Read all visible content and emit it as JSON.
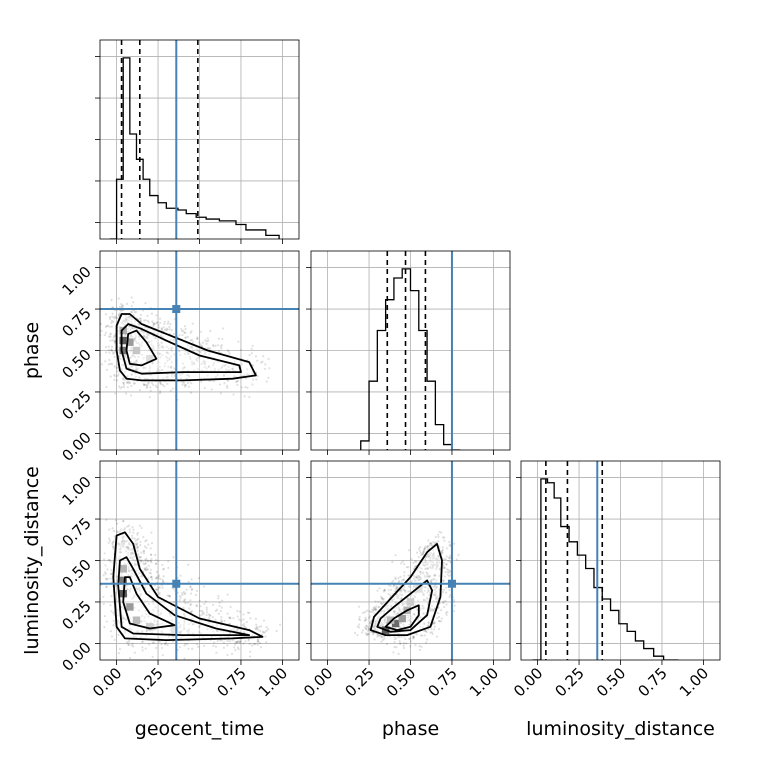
{
  "chart_data": {
    "type": "corner",
    "parameters": [
      "geocent_time",
      "phase",
      "luminosity_distance"
    ],
    "truths": [
      0.36,
      0.75,
      0.36
    ],
    "truth_color": "#4682b4",
    "axis_range": [
      -0.1,
      1.1
    ],
    "tick_values": [
      0.0,
      0.25,
      0.5,
      0.75,
      1.0
    ],
    "tick_labels": [
      "0.00",
      "0.25",
      "0.50",
      "0.75",
      "1.00"
    ],
    "grid": true,
    "quantiles": {
      "geocent_time": [
        0.03,
        0.14,
        0.49
      ],
      "phase": [
        0.36,
        0.47,
        0.59
      ],
      "luminosity_distance": [
        0.05,
        0.18,
        0.39
      ]
    },
    "histograms": {
      "geocent_time": {
        "edges": [
          -0.04,
          0.0,
          0.04,
          0.08,
          0.12,
          0.16,
          0.2,
          0.25,
          0.3,
          0.37,
          0.42,
          0.48,
          0.54,
          0.62,
          0.72,
          0.78,
          0.9,
          0.98
        ],
        "counts": [
          0.0,
          0.33,
          1.0,
          0.58,
          0.44,
          0.33,
          0.24,
          0.2,
          0.17,
          0.16,
          0.14,
          0.12,
          0.11,
          0.1,
          0.08,
          0.05,
          0.02
        ]
      },
      "phase": {
        "edges": [
          0.2,
          0.25,
          0.3,
          0.35,
          0.4,
          0.45,
          0.5,
          0.55,
          0.6,
          0.65,
          0.7,
          0.75,
          0.8
        ],
        "counts": [
          0.05,
          0.38,
          0.66,
          0.83,
          0.95,
          1.0,
          0.88,
          0.66,
          0.38,
          0.14,
          0.03,
          0.0
        ]
      },
      "luminosity_distance": {
        "edges": [
          -0.03,
          0.02,
          0.06,
          0.1,
          0.14,
          0.19,
          0.24,
          0.29,
          0.34,
          0.39,
          0.44,
          0.49,
          0.54,
          0.59,
          0.64,
          0.7,
          0.76,
          0.85
        ],
        "counts": [
          0.0,
          0.95,
          0.93,
          0.85,
          0.7,
          0.62,
          0.55,
          0.48,
          0.38,
          0.32,
          0.26,
          0.19,
          0.15,
          0.1,
          0.06,
          0.02,
          0.0
        ]
      }
    },
    "contours": {
      "geocent_time__phase": [
        [
          [
            0.0,
            0.5
          ],
          [
            0.02,
            0.38
          ],
          [
            0.06,
            0.33
          ],
          [
            0.15,
            0.32
          ],
          [
            0.4,
            0.32
          ],
          [
            0.7,
            0.33
          ],
          [
            0.84,
            0.35
          ],
          [
            0.8,
            0.43
          ],
          [
            0.55,
            0.5
          ],
          [
            0.3,
            0.6
          ],
          [
            0.15,
            0.66
          ],
          [
            0.08,
            0.72
          ],
          [
            0.03,
            0.72
          ],
          [
            0.0,
            0.65
          ]
        ],
        [
          [
            0.03,
            0.5
          ],
          [
            0.06,
            0.39
          ],
          [
            0.15,
            0.36
          ],
          [
            0.4,
            0.37
          ],
          [
            0.75,
            0.37
          ],
          [
            0.74,
            0.41
          ],
          [
            0.5,
            0.47
          ],
          [
            0.3,
            0.56
          ],
          [
            0.15,
            0.63
          ],
          [
            0.07,
            0.66
          ],
          [
            0.03,
            0.62
          ]
        ],
        [
          [
            0.06,
            0.5
          ],
          [
            0.08,
            0.42
          ],
          [
            0.15,
            0.41
          ],
          [
            0.24,
            0.45
          ],
          [
            0.18,
            0.55
          ],
          [
            0.12,
            0.62
          ],
          [
            0.07,
            0.6
          ]
        ]
      ],
      "geocent_time__luminosity_distance": [
        [
          [
            -0.02,
            0.4
          ],
          [
            0.0,
            0.1
          ],
          [
            0.05,
            0.03
          ],
          [
            0.3,
            0.02
          ],
          [
            0.7,
            0.03
          ],
          [
            0.88,
            0.04
          ],
          [
            0.8,
            0.08
          ],
          [
            0.5,
            0.15
          ],
          [
            0.25,
            0.28
          ],
          [
            0.14,
            0.45
          ],
          [
            0.1,
            0.6
          ],
          [
            0.05,
            0.67
          ],
          [
            0.0,
            0.65
          ]
        ],
        [
          [
            0.01,
            0.35
          ],
          [
            0.03,
            0.1
          ],
          [
            0.1,
            0.06
          ],
          [
            0.4,
            0.05
          ],
          [
            0.8,
            0.05
          ],
          [
            0.6,
            0.09
          ],
          [
            0.35,
            0.17
          ],
          [
            0.18,
            0.3
          ],
          [
            0.1,
            0.45
          ],
          [
            0.06,
            0.52
          ],
          [
            0.02,
            0.5
          ]
        ],
        [
          [
            0.04,
            0.25
          ],
          [
            0.08,
            0.12
          ],
          [
            0.2,
            0.09
          ],
          [
            0.35,
            0.11
          ],
          [
            0.2,
            0.18
          ],
          [
            0.12,
            0.3
          ],
          [
            0.08,
            0.4
          ],
          [
            0.05,
            0.4
          ]
        ]
      ],
      "phase__luminosity_distance": [
        [
          [
            0.26,
            0.08
          ],
          [
            0.35,
            0.05
          ],
          [
            0.48,
            0.05
          ],
          [
            0.62,
            0.1
          ],
          [
            0.68,
            0.28
          ],
          [
            0.69,
            0.5
          ],
          [
            0.66,
            0.6
          ],
          [
            0.6,
            0.55
          ],
          [
            0.5,
            0.4
          ],
          [
            0.38,
            0.27
          ],
          [
            0.28,
            0.16
          ]
        ],
        [
          [
            0.3,
            0.1
          ],
          [
            0.38,
            0.07
          ],
          [
            0.5,
            0.08
          ],
          [
            0.6,
            0.17
          ],
          [
            0.63,
            0.32
          ],
          [
            0.6,
            0.38
          ],
          [
            0.5,
            0.3
          ],
          [
            0.4,
            0.22
          ],
          [
            0.32,
            0.15
          ]
        ],
        [
          [
            0.35,
            0.1
          ],
          [
            0.42,
            0.08
          ],
          [
            0.5,
            0.1
          ],
          [
            0.55,
            0.17
          ],
          [
            0.55,
            0.23
          ],
          [
            0.48,
            0.2
          ],
          [
            0.4,
            0.15
          ]
        ]
      ]
    },
    "density_peaks": {
      "geocent_time__phase": [
        [
          0.04,
          0.56,
          1.0
        ],
        [
          0.04,
          0.5,
          0.85
        ],
        [
          0.08,
          0.55,
          0.6
        ],
        [
          0.04,
          0.62,
          0.5
        ],
        [
          0.12,
          0.5,
          0.35
        ],
        [
          0.2,
          0.45,
          0.2
        ]
      ],
      "geocent_time__luminosity_distance": [
        [
          0.04,
          0.3,
          1.0
        ],
        [
          0.04,
          0.38,
          0.8
        ],
        [
          0.08,
          0.22,
          0.6
        ],
        [
          0.04,
          0.45,
          0.45
        ],
        [
          0.12,
          0.14,
          0.4
        ],
        [
          0.2,
          0.1,
          0.3
        ],
        [
          0.35,
          0.08,
          0.15
        ]
      ],
      "phase__luminosity_distance": [
        [
          0.35,
          0.08,
          1.0
        ],
        [
          0.41,
          0.12,
          0.9
        ],
        [
          0.45,
          0.15,
          0.6
        ],
        [
          0.48,
          0.2,
          0.45
        ],
        [
          0.38,
          0.14,
          0.4
        ],
        [
          0.5,
          0.25,
          0.3
        ],
        [
          0.55,
          0.33,
          0.2
        ]
      ]
    }
  }
}
